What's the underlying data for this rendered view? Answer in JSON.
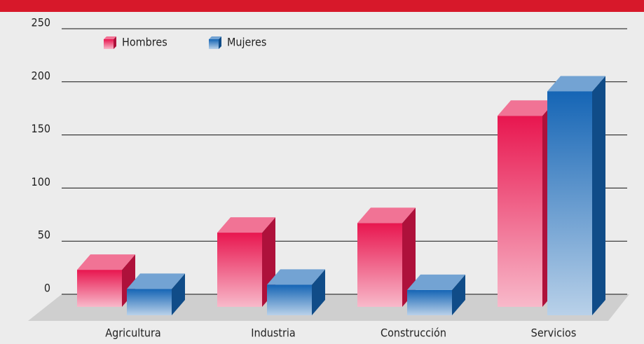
{
  "chart_data": {
    "type": "bar3d",
    "categories": [
      "Agricultura",
      "Industria",
      "Construcción",
      "Servicios"
    ],
    "series": [
      {
        "name": "Hombres",
        "color": "#e8164f",
        "values": [
          23,
          58,
          67,
          168
        ]
      },
      {
        "name": "Mujeres",
        "color": "#1565b5",
        "values": [
          5,
          9,
          4,
          191
        ]
      }
    ],
    "ylim": [
      0,
      250
    ],
    "yticks": [
      0,
      50,
      100,
      150,
      200,
      250
    ],
    "grid": true,
    "legend": "top-left"
  }
}
